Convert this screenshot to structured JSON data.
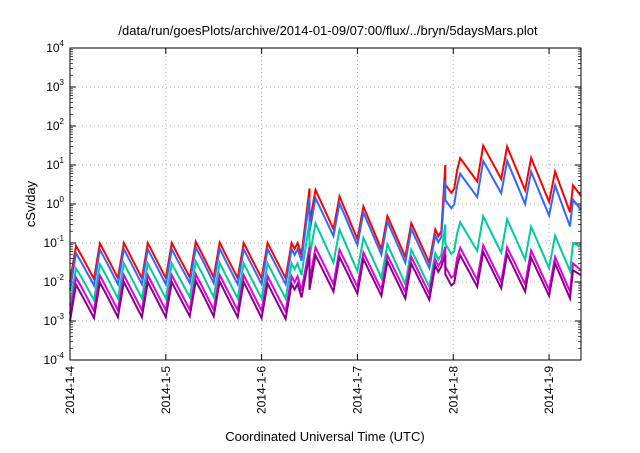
{
  "chart_data": {
    "type": "line",
    "title": "/data/run/goesPlots/archive/2014-01-09/07:00/flux/../bryn/5daysMars.plot",
    "xlabel": "Coordinated Universal Time (UTC)",
    "ylabel": "cSv/day",
    "y_scale": "log",
    "ylim": [
      0.0001,
      10000
    ],
    "xlim": [
      "2014-01-04",
      "2014-01-09 08:00"
    ],
    "grid": true,
    "legend": "none",
    "y_ticks": [
      {
        "value": 0.0001,
        "base": "10",
        "exp": "-4"
      },
      {
        "value": 0.001,
        "base": "10",
        "exp": "-3"
      },
      {
        "value": 0.01,
        "base": "10",
        "exp": "-2"
      },
      {
        "value": 0.1,
        "base": "10",
        "exp": "-1"
      },
      {
        "value": 1,
        "base": "10",
        "exp": "0"
      },
      {
        "value": 10,
        "base": "10",
        "exp": "1"
      },
      {
        "value": 100,
        "base": "10",
        "exp": "2"
      },
      {
        "value": 1000,
        "base": "10",
        "exp": "3"
      },
      {
        "value": 10000,
        "base": "10",
        "exp": "4"
      }
    ],
    "x_ticks": [
      {
        "x": "2014-01-04",
        "label": "2014-1-4"
      },
      {
        "x": "2014-01-05",
        "label": "2014-1-5"
      },
      {
        "x": "2014-01-06",
        "label": "2014-1-6"
      },
      {
        "x": "2014-01-07",
        "label": "2014-1-7"
      },
      {
        "x": "2014-01-08",
        "label": "2014-1-8"
      },
      {
        "x": "2014-01-09",
        "label": "2014-1-9"
      }
    ],
    "series": [
      {
        "color": "#ff0000",
        "x": [
          "2014-01-04 00:00",
          "2014-01-04 03:00",
          "2014-01-04 09:00",
          "2014-01-04 15:00",
          "2014-01-04 21:00",
          "2014-01-05 03:00",
          "2014-01-05 09:00",
          "2014-01-05 15:00",
          "2014-01-05 21:00",
          "2014-01-06 03:00",
          "2014-01-06 09:00",
          "2014-01-06 10:00",
          "2014-01-06 12:00",
          "2014-01-06 18:00",
          "2014-01-07 00:00",
          "2014-01-07 06:00",
          "2014-01-07 12:00",
          "2014-01-07 18:00",
          "2014-01-07 21:00",
          "2014-01-07 22:00",
          "2014-01-08 06:00",
          "2014-01-08 12:00",
          "2014-01-08 18:00",
          "2014-01-09 00:00",
          "2014-01-09 06:00",
          "2014-01-09 08:00"
        ],
        "y": [
          0.08,
          0.09,
          0.1,
          0.1,
          0.1,
          0.1,
          0.11,
          0.1,
          0.1,
          0.1,
          0.1,
          0.05,
          2.5,
          1.8,
          1.0,
          0.55,
          0.35,
          0.25,
          0.2,
          10,
          30,
          35,
          18,
          9,
          3,
          1.6
        ]
      },
      {
        "color": "#3366ff",
        "x": [
          "2014-01-04 00:00",
          "2014-01-04 03:00",
          "2014-01-04 09:00",
          "2014-01-04 15:00",
          "2014-01-04 21:00",
          "2014-01-05 03:00",
          "2014-01-05 09:00",
          "2014-01-05 15:00",
          "2014-01-05 21:00",
          "2014-01-06 03:00",
          "2014-01-06 09:00",
          "2014-01-06 10:00",
          "2014-01-06 12:00",
          "2014-01-06 18:00",
          "2014-01-07 00:00",
          "2014-01-07 06:00",
          "2014-01-07 12:00",
          "2014-01-07 18:00",
          "2014-01-07 21:00",
          "2014-01-07 22:00",
          "2014-01-08 06:00",
          "2014-01-08 12:00",
          "2014-01-08 18:00",
          "2014-01-09 00:00",
          "2014-01-09 06:00",
          "2014-01-09 08:00"
        ],
        "y": [
          0.05,
          0.06,
          0.07,
          0.07,
          0.07,
          0.07,
          0.08,
          0.07,
          0.07,
          0.07,
          0.07,
          0.035,
          1.5,
          1.2,
          0.7,
          0.4,
          0.25,
          0.18,
          0.14,
          4,
          12,
          15,
          8,
          4,
          1.3,
          0.7
        ]
      },
      {
        "color": "#00cc99",
        "x": [
          "2014-01-04 00:00",
          "2014-01-04 03:00",
          "2014-01-04 09:00",
          "2014-01-04 15:00",
          "2014-01-04 21:00",
          "2014-01-05 03:00",
          "2014-01-05 09:00",
          "2014-01-05 15:00",
          "2014-01-05 21:00",
          "2014-01-06 03:00",
          "2014-01-06 09:00",
          "2014-01-06 10:00",
          "2014-01-06 12:00",
          "2014-01-06 18:00",
          "2014-01-07 00:00",
          "2014-01-07 06:00",
          "2014-01-07 12:00",
          "2014-01-07 18:00",
          "2014-01-07 21:00",
          "2014-01-07 22:00",
          "2014-01-08 06:00",
          "2014-01-08 12:00",
          "2014-01-08 18:00",
          "2014-01-09 00:00",
          "2014-01-09 06:00",
          "2014-01-09 08:00"
        ],
        "y": [
          0.02,
          0.025,
          0.03,
          0.03,
          0.03,
          0.03,
          0.035,
          0.03,
          0.03,
          0.03,
          0.03,
          0.015,
          0.35,
          0.25,
          0.15,
          0.1,
          0.07,
          0.06,
          0.05,
          0.3,
          0.5,
          0.45,
          0.3,
          0.18,
          0.1,
          0.08
        ]
      },
      {
        "color": "#e000e0",
        "x": [
          "2014-01-04 00:00",
          "2014-01-04 03:00",
          "2014-01-04 09:00",
          "2014-01-04 15:00",
          "2014-01-04 21:00",
          "2014-01-05 03:00",
          "2014-01-05 09:00",
          "2014-01-05 15:00",
          "2014-01-05 21:00",
          "2014-01-06 03:00",
          "2014-01-06 09:00",
          "2014-01-06 10:00",
          "2014-01-06 12:00",
          "2014-01-06 18:00",
          "2014-01-07 00:00",
          "2014-01-07 06:00",
          "2014-01-07 12:00",
          "2014-01-07 18:00",
          "2014-01-07 21:00",
          "2014-01-07 22:00",
          "2014-01-08 06:00",
          "2014-01-08 12:00",
          "2014-01-08 18:00",
          "2014-01-09 00:00",
          "2014-01-09 06:00",
          "2014-01-09 08:00"
        ],
        "y": [
          0.012,
          0.014,
          0.015,
          0.015,
          0.015,
          0.015,
          0.016,
          0.015,
          0.015,
          0.014,
          0.014,
          0.006,
          0.08,
          0.07,
          0.06,
          0.05,
          0.045,
          0.04,
          0.035,
          0.08,
          0.09,
          0.08,
          0.07,
          0.05,
          0.03,
          0.02
        ]
      },
      {
        "color": "#880088",
        "x": [
          "2014-01-04 00:00",
          "2014-01-04 03:00",
          "2014-01-04 09:00",
          "2014-01-04 15:00",
          "2014-01-04 21:00",
          "2014-01-05 03:00",
          "2014-01-05 09:00",
          "2014-01-05 15:00",
          "2014-01-05 21:00",
          "2014-01-06 03:00",
          "2014-01-06 09:00",
          "2014-01-06 10:00",
          "2014-01-06 12:00",
          "2014-01-06 18:00",
          "2014-01-07 00:00",
          "2014-01-07 06:00",
          "2014-01-07 12:00",
          "2014-01-07 18:00",
          "2014-01-07 21:00",
          "2014-01-07 22:00",
          "2014-01-08 06:00",
          "2014-01-08 12:00",
          "2014-01-08 18:00",
          "2014-01-09 00:00",
          "2014-01-09 06:00",
          "2014-01-09 08:00"
        ],
        "y": [
          0.008,
          0.009,
          0.01,
          0.01,
          0.01,
          0.01,
          0.011,
          0.01,
          0.01,
          0.009,
          0.009,
          0.004,
          0.05,
          0.045,
          0.04,
          0.035,
          0.03,
          0.028,
          0.025,
          0.05,
          0.06,
          0.055,
          0.045,
          0.035,
          0.02,
          0.015
        ]
      }
    ]
  }
}
